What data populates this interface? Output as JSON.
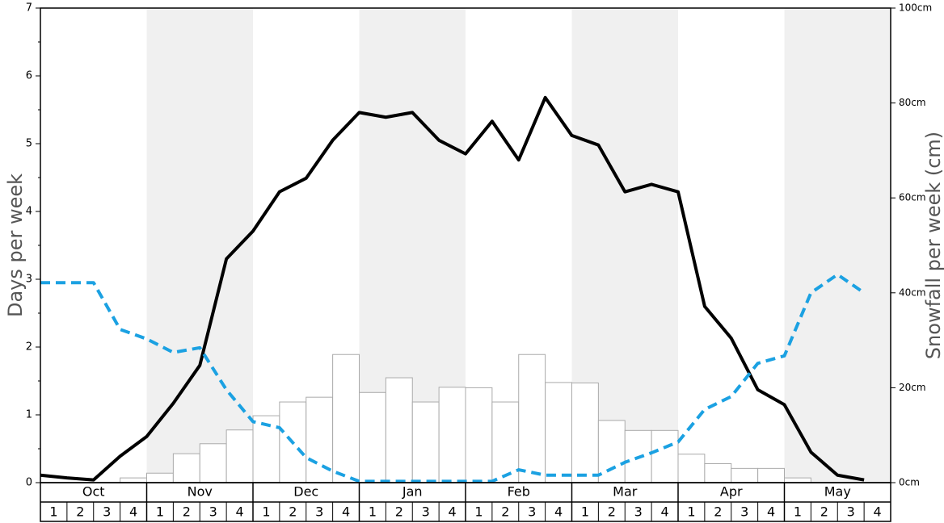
{
  "chart_data": {
    "type": "bar-line",
    "ylabel": "Days per week",
    "y2label": "Snowfall per week (cm)",
    "months": [
      "Oct",
      "Nov",
      "Dec",
      "Jan",
      "Feb",
      "Mar",
      "Apr",
      "May"
    ],
    "weeks": [
      "1",
      "2",
      "3",
      "4"
    ],
    "ylim": [
      0,
      7
    ],
    "yticks": [
      0,
      1,
      2,
      3,
      4,
      5,
      6,
      7
    ],
    "y2lim": [
      0,
      100
    ],
    "y2ticks": [
      {
        "value": 0,
        "label": "0cm"
      },
      {
        "value": 20,
        "label": "20cm"
      },
      {
        "value": 40,
        "label": "40cm"
      },
      {
        "value": 60,
        "label": "60cm"
      },
      {
        "value": 80,
        "label": "80cm"
      },
      {
        "value": 100,
        "label": "100cm"
      }
    ],
    "series": [
      {
        "type": "bar",
        "axis": "y2",
        "color": "#ffffff",
        "values": [
          0,
          0,
          0,
          1.0,
          2.0,
          6.1,
          8.2,
          11.1,
          14.1,
          17.0,
          18.0,
          27.0,
          19.0,
          22.1,
          17.0,
          20.1,
          20.0,
          17.0,
          27.0,
          21.1,
          21.0,
          13.1,
          11.0,
          11.0,
          6.0,
          4.0,
          3.0,
          3.0,
          1.0,
          0,
          0,
          0
        ]
      },
      {
        "type": "line",
        "color": "#000000",
        "values": [
          0.11,
          0.07,
          0.04,
          0.39,
          0.68,
          1.17,
          1.73,
          3.3,
          3.71,
          4.29,
          4.49,
          5.05,
          5.46,
          5.39,
          5.46,
          5.05,
          4.85,
          5.33,
          4.76,
          5.68,
          5.12,
          4.98,
          4.29,
          4.4,
          4.29,
          2.6,
          2.13,
          1.37,
          1.15,
          0.45,
          0.11,
          0.04
        ]
      },
      {
        "type": "dashed",
        "color": "#1ba1e2",
        "values": [
          2.95,
          2.95,
          2.95,
          2.26,
          2.12,
          1.92,
          1.99,
          1.37,
          0.9,
          0.81,
          0.37,
          0.17,
          0.02,
          0.02,
          0.02,
          0.02,
          0.02,
          0.02,
          0.19,
          0.11,
          0.11,
          0.11,
          0.3,
          0.44,
          0.6,
          1.08,
          1.27,
          1.76,
          1.87,
          2.8,
          3.07,
          2.8
        ]
      }
    ]
  }
}
